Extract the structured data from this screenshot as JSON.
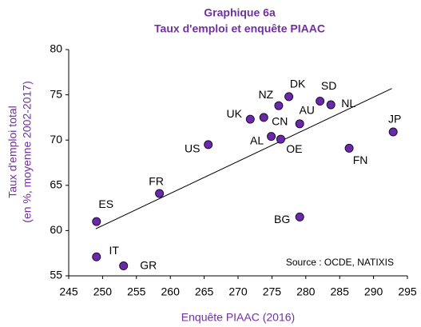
{
  "chart_data": {
    "type": "scatter",
    "title": "Graphique 6a",
    "subtitle": "Taux d'emploi et enquête PIAAC",
    "x_label": "Enquête PIAAC (2016)",
    "y_label": [
      "Taux d'emploi total",
      "(en %, moyenne 2002-2017)"
    ],
    "annotation": "Source : OCDE, NATIXIS",
    "color": "#6a2aa5",
    "labels": [
      "ES",
      "IT",
      "GR",
      "FR",
      "US",
      "UK",
      "NZ",
      "DK",
      "CN",
      "AL",
      "OE",
      "AU",
      "BG",
      "SD",
      "NL",
      "FN",
      "JP"
    ],
    "x": [
      249.1,
      249.1,
      253.1,
      258.4,
      265.6,
      271.8,
      276.0,
      277.5,
      273.8,
      274.9,
      276.3,
      279.1,
      279.1,
      282.1,
      283.7,
      286.4,
      292.9
    ],
    "y": [
      61.0,
      57.1,
      56.1,
      64.1,
      69.5,
      72.3,
      73.8,
      74.8,
      72.5,
      70.4,
      70.1,
      71.8,
      61.5,
      74.3,
      73.9,
      69.1,
      70.9
    ],
    "trendline": {
      "x": [
        249.0,
        292.7
      ],
      "y": [
        60.2,
        75.7
      ]
    },
    "xlim": [
      245,
      295
    ],
    "xticks": [
      245,
      250,
      255,
      260,
      265,
      270,
      275,
      280,
      285,
      290,
      295
    ],
    "ylim": [
      55,
      80
    ],
    "yticks": [
      55,
      60,
      65,
      70,
      75,
      80
    ]
  }
}
